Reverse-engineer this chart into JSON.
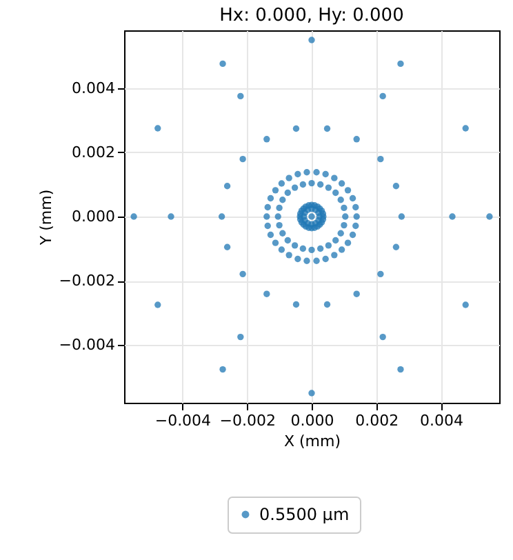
{
  "chart_data": {
    "type": "scatter",
    "title": "Hx: 0.000, Hy: 0.000",
    "xlabel": "X (mm)",
    "ylabel": "Y (mm)",
    "xlim": [
      -0.0058,
      0.0058
    ],
    "ylim": [
      -0.0058,
      0.0058
    ],
    "xticks": [
      {
        "value": -0.004,
        "label": "−0.004"
      },
      {
        "value": -0.002,
        "label": "−0.002"
      },
      {
        "value": 0,
        "label": "0.000"
      },
      {
        "value": 0.002,
        "label": "0.002"
      },
      {
        "value": 0.004,
        "label": "0.004"
      }
    ],
    "yticks": [
      {
        "value": -0.004,
        "label": "−0.004"
      },
      {
        "value": -0.002,
        "label": "−0.002"
      },
      {
        "value": 0,
        "label": "0.000"
      },
      {
        "value": 0.002,
        "label": "0.002"
      },
      {
        "value": 0.004,
        "label": "0.004"
      }
    ],
    "grid": true,
    "legend": "bottom",
    "marker": "circle",
    "x": [
      0.0055,
      0.00476,
      0.00275,
      0,
      -0.00275,
      -0.00476,
      -0.0055,
      -0.00476,
      -0.00275,
      0,
      0.00275,
      0.00476,
      0.00435,
      0.0022,
      -0.0022,
      -0.00435,
      -0.0022,
      0.0022,
      0.00278,
      0.00261,
      0.00213,
      0.00139,
      0.00048,
      -0.00048,
      -0.00139,
      -0.00213,
      -0.00261,
      -0.00278,
      -0.00261,
      -0.00213,
      -0.00139,
      -0.00048,
      0.00048,
      0.00139,
      0.00213,
      0.00261,
      0.00139,
      0.00136,
      0.00127,
      0.00112,
      0.00093,
      0.0007,
      0.00043,
      0.00015,
      -0.00015,
      -0.00043,
      -0.0007,
      -0.00093,
      -0.00112,
      -0.00127,
      -0.00136,
      -0.00139,
      -0.00136,
      -0.00127,
      -0.00112,
      -0.00093,
      -0.0007,
      -0.00043,
      -0.00015,
      0.00015,
      0.00043,
      0.0007,
      0.00093,
      0.00112,
      0.00127,
      0.00136,
      0.00104,
      0.001,
      0.0009,
      0.00074,
      0.00052,
      0.00027,
      0,
      -0.00027,
      -0.00052,
      -0.00074,
      -0.0009,
      -0.001,
      -0.00104,
      -0.001,
      -0.0009,
      -0.00074,
      -0.00052,
      -0.00027,
      0,
      0.00027,
      0.00052,
      0.00074,
      0.0009,
      0.001,
      0.00036,
      0.00035,
      0.00031,
      0.00025,
      0.00018,
      9e-05,
      0,
      -9e-05,
      -0.00018,
      -0.00025,
      -0.00031,
      -0.00035,
      -0.00036,
      -0.00035,
      -0.00031,
      -0.00025,
      -0.00018,
      -9e-05,
      0,
      9e-05,
      0.00018,
      0.00025,
      0.00031,
      0.00035,
      0.00024,
      0.00021,
      0.00012,
      0,
      -0.00012,
      -0.00021,
      -0.00024,
      -0.00021,
      -0.00012,
      0,
      0.00012,
      0.00021,
      0
    ],
    "series": [
      {
        "name": "0.5500 µm",
        "color": "#1f77b4",
        "values": [
          0,
          0.00275,
          0.00476,
          0.0055,
          0.00476,
          0.00275,
          0,
          -0.00275,
          -0.00476,
          -0.0055,
          -0.00476,
          -0.00275,
          0,
          0.00375,
          0.00375,
          0,
          -0.00375,
          -0.00375,
          0,
          0.00095,
          0.00179,
          0.00241,
          0.00274,
          0.00274,
          0.00241,
          0.00179,
          0.00095,
          0,
          -0.00095,
          -0.00179,
          -0.00241,
          -0.00274,
          -0.00274,
          -0.00241,
          -0.00179,
          -0.00095,
          0,
          0.00029,
          0.00057,
          0.00082,
          0.00103,
          0.0012,
          0.00132,
          0.00138,
          0.00138,
          0.00132,
          0.0012,
          0.00103,
          0.00082,
          0.00057,
          0.00029,
          0,
          -0.00029,
          -0.00057,
          -0.00082,
          -0.00103,
          -0.0012,
          -0.00132,
          -0.00138,
          -0.00138,
          -0.00132,
          -0.0012,
          -0.00103,
          -0.00082,
          -0.00057,
          -0.00029,
          0,
          0.00027,
          0.00052,
          0.00074,
          0.0009,
          0.001,
          0.00104,
          0.001,
          0.0009,
          0.00074,
          0.00052,
          0.00027,
          0,
          -0.00027,
          -0.00052,
          -0.00074,
          -0.0009,
          -0.001,
          -0.00104,
          -0.001,
          -0.0009,
          -0.00074,
          -0.00052,
          -0.00027,
          0,
          9e-05,
          0.00018,
          0.00025,
          0.00031,
          0.00035,
          0.00036,
          0.00035,
          0.00031,
          0.00025,
          0.00018,
          9e-05,
          0,
          -9e-05,
          -0.00018,
          -0.00025,
          -0.00031,
          -0.00035,
          -0.00036,
          -0.00035,
          -0.00031,
          -0.00025,
          -0.00018,
          -9e-05,
          0,
          0.00012,
          0.00021,
          0.00024,
          0.00021,
          0.00012,
          0,
          -0.00012,
          -0.00021,
          -0.00024,
          -0.00021,
          -0.00012,
          0
        ]
      }
    ]
  }
}
